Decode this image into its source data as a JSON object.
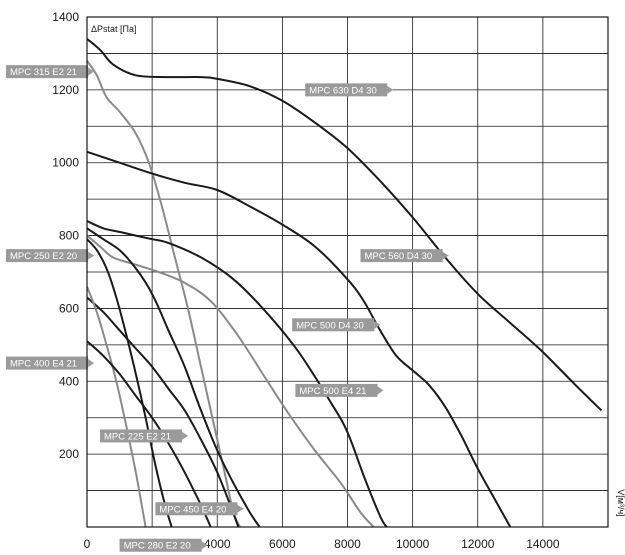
{
  "chart_data": {
    "type": "line",
    "title": "",
    "ylabel": "ΔPstat [Па]",
    "xlabel": "V[м³/ч]",
    "xlim": [
      0,
      16000
    ],
    "ylim": [
      0,
      1400
    ],
    "x_ticks": [
      "0",
      "2000",
      "4000",
      "6000",
      "8000",
      "10000",
      "12000",
      "14000"
    ],
    "y_ticks": [
      "200",
      "400",
      "600",
      "800",
      "1000",
      "1200",
      "1400"
    ],
    "grid": true,
    "series": [
      {
        "name": "MPC 315 E2 21",
        "color": "#8a8a8a",
        "points": [
          [
            0,
            1280
          ],
          [
            300,
            1240
          ],
          [
            600,
            1180
          ],
          [
            1000,
            1140
          ],
          [
            1500,
            1080
          ],
          [
            1900,
            1000
          ],
          [
            2300,
            880
          ],
          [
            2700,
            740
          ],
          [
            3100,
            600
          ],
          [
            3500,
            440
          ],
          [
            3900,
            280
          ],
          [
            4200,
            160
          ],
          [
            4500,
            40
          ],
          [
            4700,
            0
          ]
        ]
      },
      {
        "name": "MPC 630 D4 30",
        "color": "#1a1a1a",
        "points": [
          [
            0,
            1340
          ],
          [
            400,
            1310
          ],
          [
            800,
            1270
          ],
          [
            1500,
            1240
          ],
          [
            2500,
            1235
          ],
          [
            3500,
            1235
          ],
          [
            4000,
            1230
          ],
          [
            5000,
            1210
          ],
          [
            6000,
            1170
          ],
          [
            7000,
            1110
          ],
          [
            8000,
            1040
          ],
          [
            9000,
            950
          ],
          [
            10000,
            850
          ],
          [
            11000,
            740
          ],
          [
            12000,
            640
          ],
          [
            13000,
            560
          ],
          [
            14000,
            480
          ],
          [
            15000,
            390
          ],
          [
            15800,
            320
          ]
        ]
      },
      {
        "name": "MPC 560 D4 30",
        "color": "#1a1a1a",
        "points": [
          [
            0,
            1030
          ],
          [
            1000,
            1000
          ],
          [
            2000,
            970
          ],
          [
            3000,
            945
          ],
          [
            4000,
            925
          ],
          [
            5000,
            880
          ],
          [
            6000,
            830
          ],
          [
            7000,
            770
          ],
          [
            8000,
            680
          ],
          [
            8500,
            620
          ],
          [
            9000,
            540
          ],
          [
            9500,
            470
          ],
          [
            10000,
            430
          ],
          [
            10500,
            390
          ],
          [
            11000,
            330
          ],
          [
            11500,
            250
          ],
          [
            12000,
            160
          ],
          [
            12500,
            80
          ],
          [
            13000,
            0
          ]
        ]
      },
      {
        "name": "MPC 500 D4 30",
        "color": "#1a1a1a",
        "points": [
          [
            0,
            840
          ],
          [
            500,
            820
          ],
          [
            1000,
            810
          ],
          [
            1500,
            800
          ],
          [
            2000,
            790
          ],
          [
            2500,
            780
          ],
          [
            3500,
            740
          ],
          [
            4500,
            680
          ],
          [
            5500,
            590
          ],
          [
            6500,
            480
          ],
          [
            7500,
            340
          ],
          [
            8000,
            260
          ],
          [
            8500,
            140
          ],
          [
            9000,
            30
          ],
          [
            9200,
            0
          ]
        ]
      },
      {
        "name": "MPC 250 E2 20",
        "color": "#8a8a8a",
        "points": [
          [
            0,
            800
          ],
          [
            400,
            770
          ],
          [
            800,
            740
          ],
          [
            1500,
            720
          ],
          [
            2200,
            700
          ],
          [
            3000,
            670
          ],
          [
            3800,
            620
          ],
          [
            4600,
            530
          ],
          [
            5400,
            420
          ],
          [
            6200,
            310
          ],
          [
            7000,
            210
          ],
          [
            7800,
            120
          ],
          [
            8400,
            40
          ],
          [
            8800,
            0
          ]
        ]
      },
      {
        "name": "MPC 500 E4 21",
        "color": "#1a1a1a",
        "points": [
          [
            0,
            820
          ],
          [
            500,
            790
          ],
          [
            1000,
            760
          ],
          [
            1500,
            710
          ],
          [
            2000,
            640
          ],
          [
            2500,
            540
          ],
          [
            3000,
            440
          ],
          [
            3500,
            320
          ],
          [
            4000,
            210
          ],
          [
            4500,
            120
          ],
          [
            5000,
            40
          ],
          [
            5300,
            0
          ]
        ]
      },
      {
        "name": "MPC 400 E4 21",
        "color": "#1a1a1a",
        "points": [
          [
            0,
            630
          ],
          [
            500,
            590
          ],
          [
            1000,
            540
          ],
          [
            1500,
            490
          ],
          [
            2000,
            440
          ],
          [
            2500,
            380
          ],
          [
            3000,
            320
          ],
          [
            3500,
            240
          ],
          [
            4000,
            150
          ],
          [
            4400,
            60
          ],
          [
            4650,
            0
          ]
        ]
      },
      {
        "name": "MPC 225 E2 21",
        "color": "#8a8a8a",
        "points": [
          [
            0,
            660
          ],
          [
            300,
            590
          ],
          [
            600,
            500
          ],
          [
            900,
            400
          ],
          [
            1200,
            280
          ],
          [
            1500,
            150
          ],
          [
            1700,
            50
          ],
          [
            1800,
            0
          ]
        ]
      },
      {
        "name": "MPC 450 E4 20",
        "color": "#1a1a1a",
        "points": [
          [
            0,
            510
          ],
          [
            500,
            470
          ],
          [
            1000,
            420
          ],
          [
            1500,
            360
          ],
          [
            2000,
            300
          ],
          [
            2500,
            230
          ],
          [
            3000,
            150
          ],
          [
            3500,
            60
          ],
          [
            3800,
            0
          ]
        ]
      },
      {
        "name": "MPC 280 E2 20",
        "color": "#1a1a1a",
        "points": [
          [
            0,
            790
          ],
          [
            300,
            760
          ],
          [
            600,
            710
          ],
          [
            900,
            630
          ],
          [
            1200,
            530
          ],
          [
            1500,
            420
          ],
          [
            1800,
            300
          ],
          [
            2100,
            170
          ],
          [
            2400,
            60
          ],
          [
            2600,
            0
          ]
        ]
      }
    ],
    "tags": [
      {
        "label": "MPC 315 E2 21",
        "x": 0,
        "y": 1250
      },
      {
        "label": "MPC 630 D4 30",
        "x": 6700,
        "y": 1200
      },
      {
        "label": "MPC 560 D4 30",
        "x": 8400,
        "y": 745
      },
      {
        "label": "MPC 500 D4 30",
        "x": 6300,
        "y": 555
      },
      {
        "label": "MPC 250 E2 20",
        "x": 0,
        "y": 745
      },
      {
        "label": "MPC 500 E4 21",
        "x": 6400,
        "y": 375
      },
      {
        "label": "MPC 400 E4 21",
        "x": 0,
        "y": 450
      },
      {
        "label": "MPC 225 E2 21",
        "x": 400,
        "y": 250
      },
      {
        "label": "MPC 450 E4 20",
        "x": 2100,
        "y": 50
      },
      {
        "label": "MPC 280 E2 20",
        "x": 1000,
        "y": -50
      }
    ]
  }
}
